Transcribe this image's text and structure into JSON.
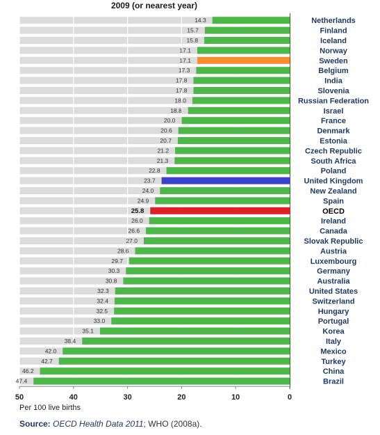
{
  "chart_data": {
    "type": "bar",
    "orientation": "horizontal",
    "title": "2009 (or nearest year)",
    "xlabel": "Per 100 live births",
    "xlim": [
      0,
      50
    ],
    "x_reversed": true,
    "ticks": [
      50,
      40,
      30,
      20,
      10,
      0
    ],
    "categories": [
      "Netherlands",
      "Finland",
      "Iceland",
      "Norway",
      "Sweden",
      "Belgium",
      "India",
      "Slovenia",
      "Russian Federation",
      "Israel",
      "France",
      "Denmark",
      "Estonia",
      "Czech Republic",
      "South Africa",
      "Poland",
      "United Kingdom",
      "New Zealand",
      "Spain",
      "OECD",
      "Ireland",
      "Canada",
      "Slovak Republic",
      "Austria",
      "Luxembourg",
      "Germany",
      "Australia",
      "United States",
      "Switzerland",
      "Hungary",
      "Portugal",
      "Korea",
      "Italy",
      "Mexico",
      "Turkey",
      "China",
      "Brazil"
    ],
    "values": [
      14.3,
      15.7,
      15.8,
      17.1,
      17.1,
      17.3,
      17.8,
      17.8,
      18.0,
      18.8,
      20.0,
      20.6,
      20.7,
      21.2,
      21.3,
      22.8,
      23.7,
      24.0,
      24.9,
      25.8,
      26.0,
      26.6,
      27.0,
      28.6,
      29.7,
      30.3,
      30.8,
      32.3,
      32.4,
      32.5,
      33.0,
      35.1,
      38.4,
      42.0,
      42.7,
      46.2,
      47.4
    ],
    "value_labels": [
      "14.3",
      "15.7",
      "15.8",
      "17.1",
      "17.1",
      "17.3",
      "17.8",
      "17.8",
      "18.0",
      "18.8",
      "20.0",
      "20.6",
      "20.7",
      "21.2",
      "21.3",
      "22.8",
      "23.7",
      "24.0",
      "24.9",
      "25.8",
      "26.0",
      "26.6",
      "27.0",
      "28.6",
      "29.7",
      "30.3",
      "30.8",
      "32.3",
      "32.4",
      "32.5",
      "33.0",
      "35.1",
      "38.4",
      "42.0",
      "42.7",
      "46.2",
      "47.4"
    ],
    "highlights": {
      "Sweden": "#ff8c2e",
      "United Kingdom": "#3a3fd0",
      "OECD": "#dd1f26"
    },
    "bold_categories": [
      "OECD"
    ],
    "colors": {
      "default_bar": "#4cb848",
      "row_background": "#dcdcdc"
    },
    "grid": true
  },
  "source": {
    "lead": "Source:",
    "italic": "OECD Health Data 2011",
    "rest": "; WHO (2008a)."
  }
}
